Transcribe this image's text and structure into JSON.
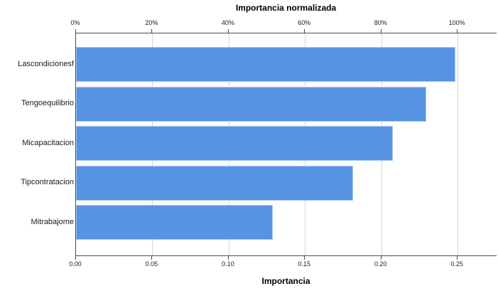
{
  "chart": {
    "top_title": "Importancia normalizada",
    "bottom_title": "Importancia"
  },
  "chart_data": {
    "type": "bar",
    "orientation": "horizontal",
    "title": "Importancia normalizada",
    "xlabel": "Importancia",
    "xlabel_top": "Importancia normalizada",
    "ylabel": "",
    "categories": [
      "Lascondicionesf",
      "Tengoequilibrio",
      "Micapacitacion",
      "Tipcontratacion",
      "Mitrabajome"
    ],
    "values": [
      0.249,
      0.23,
      0.208,
      0.182,
      0.129
    ],
    "normalized_percent": [
      100,
      92,
      83,
      73,
      52
    ],
    "x_axis_bottom": {
      "tick_values": [
        0,
        0.05,
        0.1,
        0.15,
        0.2,
        0.25
      ],
      "tick_labels": [
        "0.00",
        "0.05",
        "0.10",
        "0.15",
        "0.20",
        "0.25"
      ],
      "max": 0.276
    },
    "x_axis_top": {
      "tick_values": [
        0,
        20,
        40,
        60,
        80,
        100
      ],
      "tick_labels": [
        "0%",
        "20%",
        "40%",
        "60%",
        "80%",
        "100%"
      ],
      "max": 110.4
    },
    "grid": true,
    "legend": false,
    "colors": {
      "bar_fill": "#5793E3",
      "bar_border": "#A9C7F0",
      "gridline": "#D6D6D6",
      "frame": "#4A4A4A",
      "text": "#1A1A1A"
    }
  }
}
